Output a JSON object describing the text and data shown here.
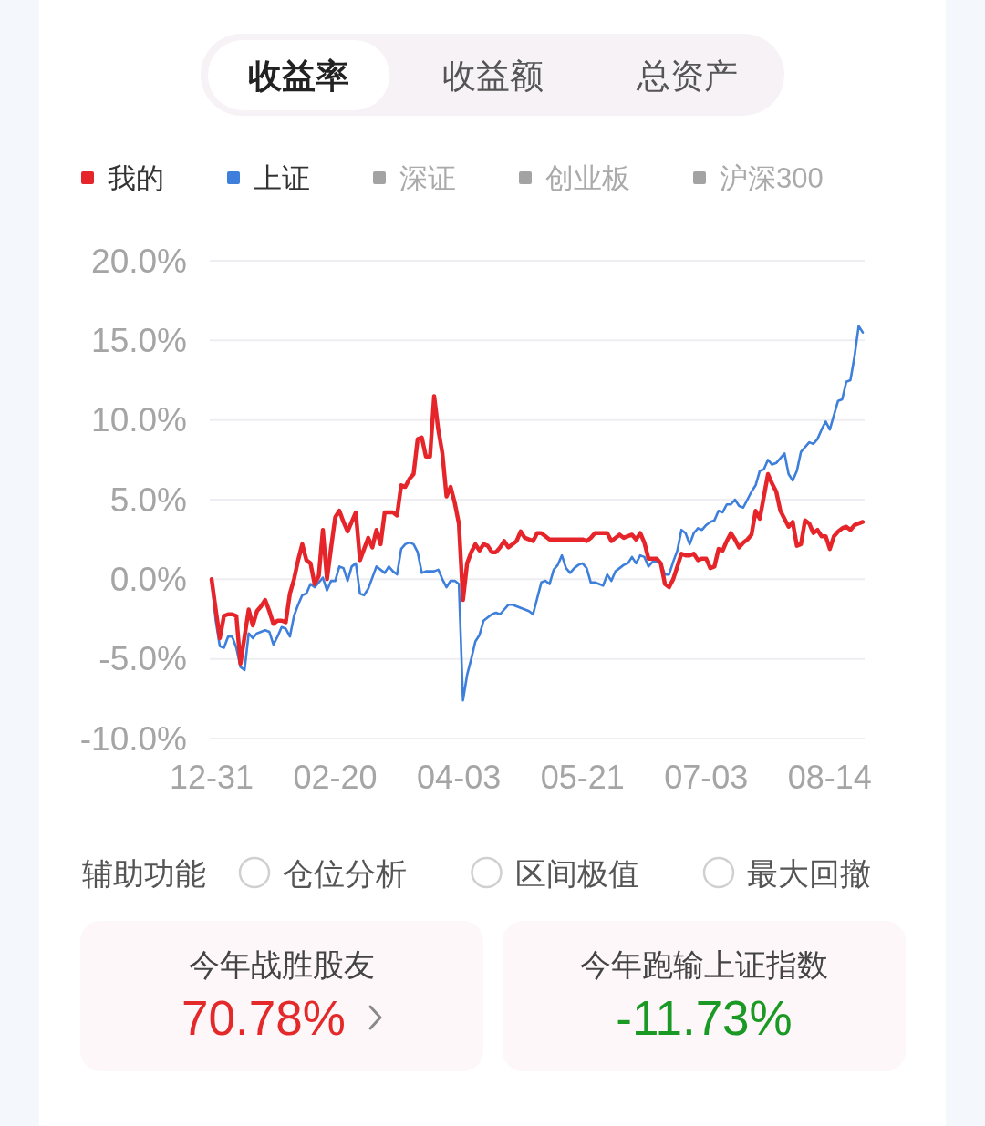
{
  "chart_data": [
    {
      "type": "line",
      "annotations": [
        "收益率",
        "收益额",
        "总资产",
        "辅助功能",
        "仓位分析",
        "区间极值",
        "最大回撤"
      ],
      "categories": [
        "12-31",
        null,
        null,
        null,
        null,
        null,
        null,
        null,
        null,
        null,
        null,
        null,
        null,
        null,
        null,
        null,
        null,
        null,
        null,
        null,
        null,
        null,
        null,
        null,
        null,
        null,
        null,
        null,
        null,
        null,
        "02-20",
        null,
        null,
        null,
        null,
        null,
        null,
        null,
        null,
        null,
        null,
        null,
        null,
        null,
        null,
        null,
        null,
        null,
        null,
        null,
        null,
        null,
        null,
        null,
        null,
        null,
        null,
        null,
        null,
        null,
        "04-03",
        null,
        null,
        null,
        null,
        null,
        null,
        null,
        null,
        null,
        null,
        null,
        null,
        null,
        null,
        null,
        null,
        null,
        null,
        null,
        null,
        null,
        null,
        null,
        null,
        null,
        null,
        null,
        null,
        null,
        "05-21",
        null,
        null,
        null,
        null,
        null,
        null,
        null,
        null,
        null,
        null,
        null,
        null,
        null,
        null,
        null,
        null,
        null,
        null,
        null,
        null,
        null,
        null,
        null,
        null,
        null,
        null,
        null,
        null,
        null,
        "07-03",
        null,
        null,
        null,
        null,
        null,
        null,
        null,
        null,
        null,
        null,
        null,
        null,
        null,
        null,
        null,
        null,
        null,
        null,
        null,
        null,
        null,
        null,
        null,
        null,
        null,
        null,
        null,
        null,
        null,
        "08-14",
        null,
        null,
        null,
        null,
        null,
        null,
        null,
        null
      ],
      "series": [
        {
          "name": "我的",
          "color": "#e5252a",
          "values": [
            0,
            -1.9,
            -3.7,
            -2.3,
            -2.2,
            -2.2,
            -2.3,
            -5.3,
            -3.6,
            -1.9,
            -2.9,
            -2.0,
            -1.7,
            -1.3,
            -2.0,
            -2.8,
            -2.6,
            -2.6,
            -2.7,
            -0.9,
            0.0,
            1.2,
            2.2,
            1.2,
            1.0,
            -0.3,
            0.2,
            3.1,
            0.0,
            2.0,
            3.9,
            4.3,
            3.6,
            3.0,
            3.6,
            4.2,
            1.2,
            1.9,
            2.6,
            2.0,
            3.1,
            2.2,
            4.2,
            4.2,
            4.2,
            4.0,
            5.9,
            5.8,
            6.3,
            6.6,
            8.8,
            8.9,
            7.7,
            7.7,
            11.5,
            9.4,
            7.9,
            5.2,
            5.8,
            4.8,
            3.5,
            -1.3,
            1.0,
            1.7,
            2.2,
            1.8,
            2.2,
            2.1,
            1.7,
            1.7,
            2.0,
            2.4,
            2.0,
            2.2,
            2.4,
            3.0,
            2.6,
            2.5,
            2.4,
            2.9,
            2.9,
            2.7,
            2.5,
            2.5,
            2.5,
            2.5,
            2.5,
            2.5,
            2.5,
            2.5,
            2.5,
            2.4,
            2.6,
            2.9,
            2.9,
            2.9,
            2.9,
            2.4,
            2.6,
            2.8,
            2.6,
            2.7,
            2.8,
            2.5,
            2.9,
            2.3,
            1.3,
            1.3,
            1.3,
            1.0,
            -0.3,
            -0.5,
            0.0,
            0.8,
            1.6,
            1.5,
            1.5,
            1.6,
            1.2,
            1.3,
            1.3,
            0.7,
            0.8,
            1.9,
            1.8,
            2.4,
            2.9,
            2.5,
            2.0,
            2.3,
            2.5,
            2.8,
            4.3,
            3.8,
            5.2,
            6.6,
            6.0,
            5.5,
            4.3,
            3.8,
            3.3,
            3.6,
            2.1,
            2.2,
            3.7,
            3.5,
            2.9,
            3.1,
            2.7,
            2.7,
            1.9,
            2.7,
            3.0,
            3.2,
            3.3,
            3.1,
            3.4,
            3.5,
            3.6
          ]
        },
        {
          "name": "上证",
          "color": "#3d7fdb",
          "values": [
            0,
            -2.6,
            -4.2,
            -4.3,
            -3.6,
            -3.6,
            -4.3,
            -5.5,
            -5.7,
            -3.4,
            -3.7,
            -3.4,
            -3.3,
            -3.2,
            -3.3,
            -4.1,
            -3.6,
            -3.0,
            -3.1,
            -3.6,
            -2.3,
            -1.6,
            -1.0,
            -0.9,
            -0.3,
            -0.5,
            -0.2,
            0.1,
            -0.7,
            -0.1,
            -0.1,
            0.8,
            0.7,
            -0.1,
            0.8,
            1.0,
            -0.9,
            -1.0,
            -0.6,
            0.1,
            0.8,
            0.6,
            0.4,
            0.8,
            0.5,
            0.3,
            1.9,
            2.2,
            2.3,
            2.2,
            1.7,
            0.4,
            0.5,
            0.5,
            0.5,
            0.6,
            0.0,
            -0.5,
            -0.1,
            -0.1,
            -0.3,
            -7.6,
            -6.0,
            -5.0,
            -3.9,
            -3.5,
            -2.6,
            -2.4,
            -2.2,
            -2.1,
            -2.2,
            -1.9,
            -1.6,
            -1.6,
            -1.7,
            -1.8,
            -1.9,
            -2.0,
            -2.2,
            -1.2,
            -0.2,
            -0.1,
            -0.3,
            0.6,
            0.9,
            1.5,
            0.7,
            0.4,
            0.7,
            0.9,
            1.0,
            0.7,
            -0.2,
            -0.2,
            -0.3,
            -0.4,
            0.3,
            -0.1,
            0.5,
            0.7,
            0.9,
            1.0,
            1.4,
            1.0,
            1.5,
            1.4,
            0.8,
            1.1,
            1.1,
            1.0,
            0.3,
            0.3,
            1.1,
            1.8,
            3.1,
            2.9,
            2.2,
            2.9,
            3.2,
            3.1,
            3.4,
            3.6,
            3.7,
            4.3,
            4.2,
            4.7,
            4.7,
            5.0,
            4.6,
            4.5,
            5.0,
            5.5,
            5.9,
            6.8,
            6.9,
            7.5,
            7.2,
            7.3,
            7.6,
            7.9,
            6.6,
            6.2,
            6.8,
            8.0,
            8.3,
            8.6,
            8.5,
            8.8,
            9.4,
            9.9,
            9.4,
            10.3,
            11.2,
            11.3,
            12.4,
            12.5,
            14.0,
            15.9,
            15.5
          ]
        },
        {
          "name": "深证",
          "color": "#a3a3a3",
          "values": [
            null,
            null,
            null,
            null,
            null,
            null,
            null,
            null,
            null,
            null,
            null,
            null,
            null,
            null,
            null,
            null,
            null,
            null,
            null,
            null,
            null,
            null,
            null,
            null,
            null,
            null,
            null,
            null,
            null,
            null,
            null,
            null,
            null,
            null,
            null,
            null,
            null,
            null,
            null,
            null,
            null,
            null,
            null,
            null,
            null,
            null,
            null,
            null,
            null,
            null,
            null,
            null,
            null,
            null,
            null,
            null,
            null,
            null,
            null,
            null,
            null,
            null,
            null,
            null,
            null,
            null,
            null,
            null,
            null,
            null,
            null,
            null,
            null,
            null,
            null,
            null,
            null,
            null,
            null,
            null,
            null,
            null,
            null,
            null,
            null,
            null,
            null,
            null,
            null,
            null,
            null,
            null,
            null,
            null,
            null,
            null,
            null,
            null,
            null,
            null,
            null,
            null,
            null,
            null,
            null,
            null,
            null,
            null,
            null,
            null,
            null,
            null,
            null,
            null,
            null,
            null,
            null,
            null,
            null,
            null,
            null,
            null,
            null,
            null,
            null,
            null,
            null,
            null,
            null,
            null,
            null,
            null,
            null,
            null,
            null,
            null,
            null,
            null,
            null,
            null,
            null,
            null,
            null,
            null,
            null,
            null,
            null,
            null,
            null,
            null,
            null,
            null,
            null,
            null,
            null,
            null,
            null,
            null,
            null
          ]
        },
        {
          "name": "创业板",
          "color": "#a3a3a3",
          "values": [
            null,
            null,
            null,
            null,
            null,
            null,
            null,
            null,
            null,
            null,
            null,
            null,
            null,
            null,
            null,
            null,
            null,
            null,
            null,
            null,
            null,
            null,
            null,
            null,
            null,
            null,
            null,
            null,
            null,
            null,
            null,
            null,
            null,
            null,
            null,
            null,
            null,
            null,
            null,
            null,
            null,
            null,
            null,
            null,
            null,
            null,
            null,
            null,
            null,
            null,
            null,
            null,
            null,
            null,
            null,
            null,
            null,
            null,
            null,
            null,
            null,
            null,
            null,
            null,
            null,
            null,
            null,
            null,
            null,
            null,
            null,
            null,
            null,
            null,
            null,
            null,
            null,
            null,
            null,
            null,
            null,
            null,
            null,
            null,
            null,
            null,
            null,
            null,
            null,
            null,
            null,
            null,
            null,
            null,
            null,
            null,
            null,
            null,
            null,
            null,
            null,
            null,
            null,
            null,
            null,
            null,
            null,
            null,
            null,
            null,
            null,
            null,
            null,
            null,
            null,
            null,
            null,
            null,
            null,
            null,
            null,
            null,
            null,
            null,
            null,
            null,
            null,
            null,
            null,
            null,
            null,
            null,
            null,
            null,
            null,
            null,
            null,
            null,
            null,
            null,
            null,
            null,
            null,
            null,
            null,
            null,
            null,
            null,
            null,
            null,
            null,
            null,
            null,
            null,
            null,
            null,
            null,
            null,
            null
          ]
        },
        {
          "name": "沪深300",
          "color": "#a3a3a3",
          "values": [
            null,
            null,
            null,
            null,
            null,
            null,
            null,
            null,
            null,
            null,
            null,
            null,
            null,
            null,
            null,
            null,
            null,
            null,
            null,
            null,
            null,
            null,
            null,
            null,
            null,
            null,
            null,
            null,
            null,
            null,
            null,
            null,
            null,
            null,
            null,
            null,
            null,
            null,
            null,
            null,
            null,
            null,
            null,
            null,
            null,
            null,
            null,
            null,
            null,
            null,
            null,
            null,
            null,
            null,
            null,
            null,
            null,
            null,
            null,
            null,
            null,
            null,
            null,
            null,
            null,
            null,
            null,
            null,
            null,
            null,
            null,
            null,
            null,
            null,
            null,
            null,
            null,
            null,
            null,
            null,
            null,
            null,
            null,
            null,
            null,
            null,
            null,
            null,
            null,
            null,
            null,
            null,
            null,
            null,
            null,
            null,
            null,
            null,
            null,
            null,
            null,
            null,
            null,
            null,
            null,
            null,
            null,
            null,
            null,
            null,
            null,
            null,
            null,
            null,
            null,
            null,
            null,
            null,
            null,
            null,
            null,
            null,
            null,
            null,
            null,
            null,
            null,
            null,
            null,
            null,
            null,
            null,
            null,
            null,
            null,
            null,
            null,
            null,
            null,
            null,
            null,
            null,
            null,
            null,
            null,
            null,
            null,
            null,
            null,
            null,
            null,
            null,
            null,
            null,
            null,
            null,
            null,
            null,
            null
          ]
        }
      ],
      "ylim": [
        -10,
        20
      ],
      "yticks": [
        {
          "value": 20,
          "label": "20.0%"
        },
        {
          "value": 15,
          "label": "15.0%"
        },
        {
          "value": 10,
          "label": "10.0%"
        },
        {
          "value": 5,
          "label": "5.0%"
        },
        {
          "value": 0,
          "label": "0.0%"
        },
        {
          "value": -5,
          "label": "-5.0%"
        },
        {
          "value": -10,
          "label": "-10.0%"
        }
      ],
      "grid": "y",
      "legend": "top"
    },
    {
      "type": "other",
      "annotations": [
        "今年战胜股友",
        "70.78%",
        "今年跑输上证指数",
        "-11.73%"
      ]
    }
  ]
}
